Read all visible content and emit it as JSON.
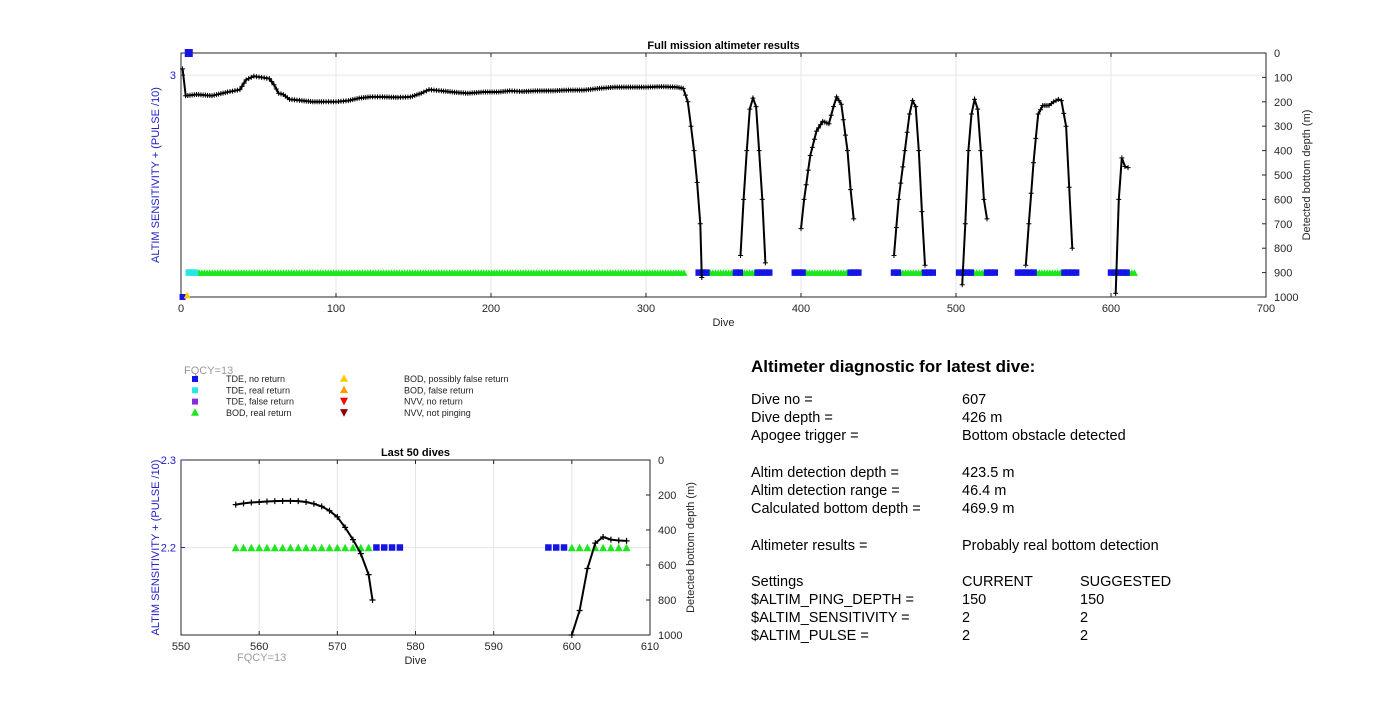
{
  "colors": {
    "tde_no_return": "#1414e6",
    "tde_real_return": "#27e6e6",
    "tde_false_return": "#8a2be2",
    "bod_real_return": "#1ee61e",
    "bod_possibly_false": "#ffc800",
    "bod_false_return": "#ff9c00",
    "nvv_no_return": "#ff0000",
    "nvv_not_pinging": "#8b0000",
    "altim_axis": "#2020c8",
    "depth_line": "#000000"
  },
  "fqcy_label": "FQCY=13",
  "legend": [
    {
      "label": "TDE, no return",
      "marker": "square",
      "color": "#1414e6"
    },
    {
      "label": "TDE, real return",
      "marker": "square",
      "color": "#27e6e6"
    },
    {
      "label": "TDE, false return",
      "marker": "square",
      "color": "#8a2be2"
    },
    {
      "label": "BOD, real return",
      "marker": "triangle-up",
      "color": "#1ee61e"
    },
    {
      "label": "BOD, possibly false return",
      "marker": "triangle-up",
      "color": "#ffc800"
    },
    {
      "label": "BOD, false return",
      "marker": "triangle-up",
      "color": "#ff9c00"
    },
    {
      "label": "NVV, no return",
      "marker": "triangle-down",
      "color": "#ff0000"
    },
    {
      "label": "NVV, not pinging",
      "marker": "triangle-down",
      "color": "#8b0000"
    }
  ],
  "chart_data": [
    {
      "type": "scatter",
      "title": "Full mission altimeter results",
      "xlabel": "Dive",
      "ylabel_left": "ALTIM SENSITIVITY + (PULSE /10)",
      "ylabel_right": "Detected bottom depth (m)",
      "xlim": [
        0,
        700
      ],
      "xticks": [
        "0",
        "100",
        "200",
        "300",
        "400",
        "500",
        "600",
        "700"
      ],
      "ylim_left": [
        2.0,
        3.1
      ],
      "yticks_left": [
        "3"
      ],
      "ylim_right": [
        0,
        1000
      ],
      "yticks_right": [
        "0",
        "100",
        "200",
        "300",
        "400",
        "500",
        "600",
        "700",
        "800",
        "900",
        "1000"
      ],
      "grid": true,
      "bottom_depth_segments": [
        [
          [
            1,
            65
          ],
          [
            3,
            175
          ],
          [
            10,
            170
          ],
          [
            20,
            175
          ],
          [
            30,
            160
          ],
          [
            38,
            150
          ],
          [
            42,
            110
          ],
          [
            47,
            95
          ],
          [
            52,
            100
          ],
          [
            57,
            105
          ],
          [
            60,
            130
          ],
          [
            63,
            165
          ],
          [
            66,
            170
          ],
          [
            70,
            190
          ],
          [
            78,
            195
          ],
          [
            85,
            200
          ],
          [
            92,
            200
          ],
          [
            100,
            200
          ],
          [
            108,
            195
          ],
          [
            115,
            185
          ],
          [
            122,
            180
          ],
          [
            130,
            180
          ],
          [
            140,
            182
          ],
          [
            148,
            180
          ],
          [
            155,
            165
          ],
          [
            160,
            150
          ],
          [
            168,
            155
          ],
          [
            175,
            160
          ],
          [
            185,
            165
          ],
          [
            195,
            160
          ],
          [
            205,
            160
          ],
          [
            212,
            155
          ],
          [
            220,
            158
          ],
          [
            230,
            155
          ],
          [
            240,
            155
          ],
          [
            250,
            152
          ],
          [
            260,
            152
          ],
          [
            270,
            145
          ],
          [
            280,
            140
          ],
          [
            290,
            140
          ],
          [
            300,
            140
          ],
          [
            310,
            138
          ],
          [
            320,
            140
          ],
          [
            324,
            145
          ],
          [
            327,
            200
          ],
          [
            329,
            300
          ],
          [
            331,
            400
          ],
          [
            333,
            530
          ],
          [
            335,
            700
          ],
          [
            336,
            920
          ]
        ],
        [
          [
            361,
            830
          ],
          [
            363,
            600
          ],
          [
            365,
            400
          ],
          [
            367,
            230
          ],
          [
            369,
            185
          ],
          [
            371,
            220
          ],
          [
            373,
            400
          ],
          [
            375,
            600
          ],
          [
            377,
            860
          ]
        ],
        [
          [
            400,
            720
          ],
          [
            402,
            600
          ],
          [
            406,
            420
          ],
          [
            410,
            320
          ],
          [
            414,
            280
          ],
          [
            418,
            290
          ],
          [
            421,
            220
          ],
          [
            423,
            180
          ],
          [
            426,
            210
          ],
          [
            430,
            400
          ],
          [
            432,
            560
          ],
          [
            434,
            680
          ]
        ],
        [
          [
            460,
            830
          ],
          [
            463,
            600
          ],
          [
            467,
            400
          ],
          [
            470,
            250
          ],
          [
            472,
            195
          ],
          [
            474,
            220
          ],
          [
            476,
            400
          ],
          [
            478,
            650
          ],
          [
            480,
            870
          ]
        ],
        [
          [
            504,
            950
          ],
          [
            506,
            700
          ],
          [
            508,
            400
          ],
          [
            510,
            250
          ],
          [
            512,
            190
          ],
          [
            514,
            230
          ],
          [
            516,
            400
          ],
          [
            518,
            600
          ],
          [
            520,
            680
          ]
        ],
        [
          [
            545,
            870
          ],
          [
            547,
            700
          ],
          [
            550,
            450
          ],
          [
            553,
            250
          ],
          [
            556,
            215
          ],
          [
            560,
            215
          ],
          [
            563,
            200
          ],
          [
            566,
            190
          ],
          [
            568,
            195
          ],
          [
            571,
            300
          ],
          [
            573,
            550
          ],
          [
            575,
            800
          ]
        ],
        [
          [
            603,
            985
          ],
          [
            605,
            600
          ],
          [
            607,
            430
          ],
          [
            609,
            465
          ],
          [
            611,
            470
          ]
        ]
      ],
      "tde_real_return_range": [
        5,
        10
      ],
      "tde_no_return_points": [
        [
          5,
          3.1
        ],
        [
          1,
          2.0
        ]
      ],
      "bod_possibly_false_points": [
        [
          4,
          2.0
        ]
      ],
      "bod_real_return_ranges": [
        [
          10,
          326
        ],
        [
          338,
          358
        ],
        [
          360,
          372
        ],
        [
          402,
          432
        ],
        [
          464,
          480
        ],
        [
          510,
          520
        ],
        [
          552,
          570
        ],
        [
          610,
          616
        ]
      ],
      "tde_no_return_ranges": [
        [
          334,
          341
        ],
        [
          358,
          362
        ],
        [
          372,
          380
        ],
        [
          396,
          402
        ],
        [
          432,
          437
        ],
        [
          460,
          464
        ],
        [
          480,
          486
        ],
        [
          502,
          510
        ],
        [
          520,
          525
        ],
        [
          540,
          552
        ],
        [
          570,
          578
        ],
        [
          600,
          610
        ]
      ]
    },
    {
      "type": "scatter",
      "title": "Last 50 dives",
      "xlabel": "Dive",
      "ylabel_left": "ALTIM SENSITIVITY + (PULSE /10)",
      "ylabel_right": "Detected bottom depth (m)",
      "xlim": [
        550,
        610
      ],
      "xticks": [
        "550",
        "560",
        "570",
        "580",
        "590",
        "600",
        "610"
      ],
      "ylim_left": [
        2.1,
        2.3
      ],
      "yticks_left": [
        "2.2",
        "2.3"
      ],
      "ylim_right": [
        0,
        1000
      ],
      "yticks_right": [
        "0",
        "200",
        "400",
        "600",
        "800",
        "1000"
      ],
      "grid": true,
      "bottom_depth_segments": [
        [
          [
            557,
            255
          ],
          [
            558,
            248
          ],
          [
            559,
            243
          ],
          [
            560,
            240
          ],
          [
            561,
            237
          ],
          [
            562,
            235
          ],
          [
            563,
            234
          ],
          [
            564,
            234
          ],
          [
            565,
            235
          ],
          [
            566,
            240
          ],
          [
            567,
            250
          ],
          [
            568,
            265
          ],
          [
            569,
            290
          ],
          [
            570,
            325
          ],
          [
            571,
            385
          ],
          [
            572,
            455
          ],
          [
            573,
            535
          ],
          [
            574,
            655
          ],
          [
            574.5,
            800
          ]
        ],
        [
          [
            600,
            1000
          ],
          [
            601,
            860
          ],
          [
            602,
            620
          ],
          [
            603,
            475
          ],
          [
            604,
            440
          ],
          [
            605,
            455
          ],
          [
            606,
            460
          ],
          [
            607,
            462
          ]
        ]
      ],
      "bod_real_return_x": [
        557,
        558,
        559,
        560,
        561,
        562,
        563,
        564,
        565,
        566,
        567,
        568,
        569,
        570,
        571,
        572,
        573,
        574,
        600,
        601,
        602,
        603,
        604,
        605,
        606,
        607
      ],
      "tde_no_return_x": [
        575,
        576,
        577,
        578,
        597,
        598,
        599
      ],
      "marker_level": 2.2
    }
  ],
  "diagnostic": {
    "heading": "Altimeter diagnostic for latest dive:",
    "rows": [
      {
        "label": "Dive no =",
        "value": "607"
      },
      {
        "label": "Dive depth =",
        "value": "426 m"
      },
      {
        "label": "Apogee trigger =",
        "value": "Bottom obstacle detected"
      },
      {
        "gap": true
      },
      {
        "label": "Altim detection depth =",
        "value": "423.5 m"
      },
      {
        "label": "Altim detection range =",
        "value": "46.4 m"
      },
      {
        "label": "Calculated bottom depth =",
        "value": "469.9 m"
      },
      {
        "gap": true
      },
      {
        "label": "Altimeter results =",
        "value": "Probably real bottom detection"
      },
      {
        "gap": true
      },
      {
        "label": "Settings",
        "value": "CURRENT",
        "value2": "SUGGESTED"
      },
      {
        "label": "$ALTIM_PING_DEPTH =",
        "value": "150",
        "value2": "150"
      },
      {
        "label": "$ALTIM_SENSITIVITY =",
        "value": "2",
        "value2": "2"
      },
      {
        "label": "$ALTIM_PULSE =",
        "value": "2",
        "value2": "2"
      }
    ]
  }
}
